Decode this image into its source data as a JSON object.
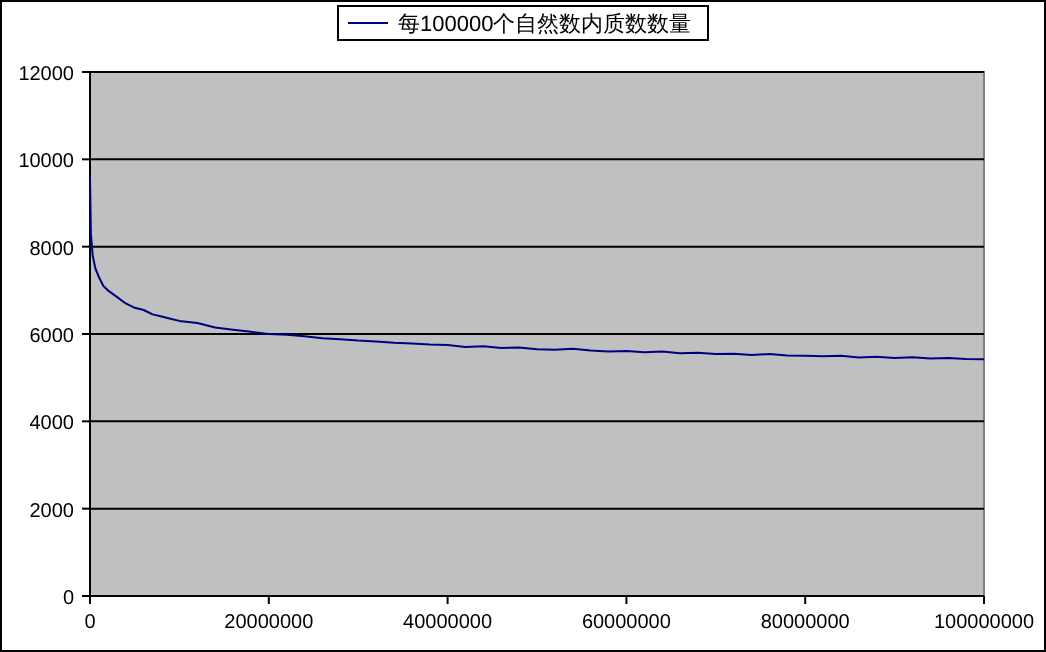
{
  "chart_data": {
    "type": "line",
    "legend": "top",
    "grid": "y",
    "xlim": [
      0,
      100000000
    ],
    "ylim": [
      0,
      12000
    ],
    "xticks": [
      0,
      20000000,
      40000000,
      60000000,
      80000000,
      100000000
    ],
    "yticks": [
      0,
      2000,
      4000,
      6000,
      8000,
      10000,
      12000
    ],
    "series": [
      {
        "name": "每100000个自然数内质数数量",
        "color": "#000080",
        "x": [
          0,
          100000,
          300000,
          600000,
          1000000,
          1500000,
          2000000,
          3000000,
          4000000,
          5000000,
          6000000,
          7000000,
          8000000,
          9000000,
          10000000,
          12000000,
          14000000,
          16000000,
          18000000,
          20000000,
          22000000,
          24000000,
          26000000,
          28000000,
          30000000,
          32000000,
          34000000,
          36000000,
          38000000,
          40000000,
          42000000,
          44000000,
          46000000,
          48000000,
          50000000,
          52000000,
          54000000,
          56000000,
          58000000,
          60000000,
          62000000,
          64000000,
          66000000,
          68000000,
          70000000,
          72000000,
          74000000,
          76000000,
          78000000,
          80000000,
          82000000,
          84000000,
          86000000,
          88000000,
          90000000,
          92000000,
          94000000,
          96000000,
          98000000,
          100000000
        ],
        "values": [
          9600,
          8300,
          7800,
          7500,
          7300,
          7100,
          7000,
          6850,
          6700,
          6600,
          6550,
          6450,
          6400,
          6350,
          6300,
          6250,
          6150,
          6100,
          6050,
          6000,
          5980,
          5950,
          5900,
          5880,
          5850,
          5830,
          5800,
          5780,
          5760,
          5750,
          5700,
          5720,
          5680,
          5690,
          5650,
          5640,
          5660,
          5620,
          5600,
          5610,
          5580,
          5600,
          5560,
          5570,
          5540,
          5550,
          5520,
          5540,
          5510,
          5500,
          5490,
          5500,
          5460,
          5480,
          5450,
          5470,
          5440,
          5450,
          5430,
          5420
        ]
      }
    ]
  }
}
